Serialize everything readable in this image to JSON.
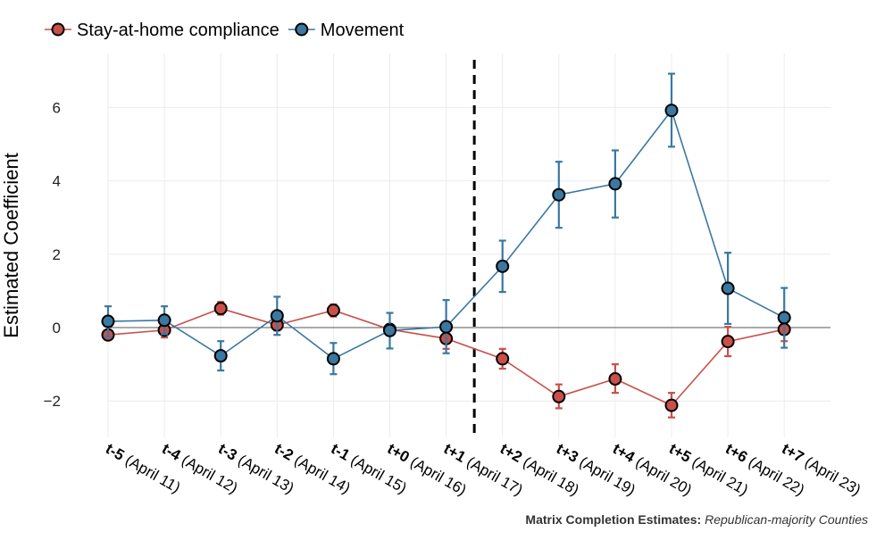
{
  "chart_data": {
    "type": "line",
    "title": "",
    "xlabel": "",
    "ylabel": "Estimated Coefficient",
    "ylim": [
      -3,
      7.2
    ],
    "yticks": [
      -2,
      0,
      2,
      4,
      6
    ],
    "ytick_labels": [
      "−2",
      "0",
      "2",
      "4",
      "6"
    ],
    "grid": true,
    "zero_line": 0,
    "legend": "top-left",
    "categories": [
      {
        "bold": "t-5",
        "rest": " (April 11)"
      },
      {
        "bold": "t-4",
        "rest": " (April 12)"
      },
      {
        "bold": "t-3",
        "rest": " (April 13)"
      },
      {
        "bold": "t-2",
        "rest": " (April 14)"
      },
      {
        "bold": "t-1",
        "rest": " (April 15)"
      },
      {
        "bold": "t+0",
        "rest": " (April 16)"
      },
      {
        "bold": "t+1",
        "rest": " (April 17)"
      },
      {
        "bold": "t+2",
        "rest": " (April 18)"
      },
      {
        "bold": "t+3",
        "rest": " (April 19)"
      },
      {
        "bold": "t+4",
        "rest": " (April 20)"
      },
      {
        "bold": "t+5",
        "rest": " (April 21)"
      },
      {
        "bold": "t+6",
        "rest": " (April 22)"
      },
      {
        "bold": "t+7",
        "rest": " (April 23)"
      }
    ],
    "treatment_line_x": 6.5,
    "series": [
      {
        "name": "Stay-at-home compliance",
        "color": "#c9504a",
        "values": [
          -0.2,
          -0.07,
          0.52,
          0.07,
          0.47,
          -0.05,
          -0.3,
          -0.85,
          -1.88,
          -1.4,
          -2.12,
          -0.38,
          -0.05
        ],
        "lower": [
          -0.32,
          -0.27,
          0.35,
          -0.08,
          0.3,
          -0.18,
          -0.58,
          -1.12,
          -2.2,
          -1.78,
          -2.45,
          -0.78,
          -0.37
        ],
        "upper": [
          -0.08,
          0.13,
          0.7,
          0.22,
          0.63,
          0.08,
          -0.02,
          -0.58,
          -1.55,
          -1.0,
          -1.78,
          0.02,
          0.25
        ]
      },
      {
        "name": "Movement",
        "color": "#3a78a1",
        "values": [
          0.17,
          0.2,
          -0.77,
          0.32,
          -0.85,
          -0.08,
          0.02,
          1.67,
          3.62,
          3.92,
          5.92,
          1.07,
          0.27
        ],
        "lower": [
          -0.25,
          -0.18,
          -1.17,
          -0.2,
          -1.27,
          -0.57,
          -0.7,
          0.97,
          2.72,
          3.0,
          4.93,
          0.1,
          -0.55
        ],
        "upper": [
          0.58,
          0.58,
          -0.37,
          0.84,
          -0.42,
          0.4,
          0.75,
          2.37,
          4.52,
          4.83,
          6.92,
          2.04,
          1.08
        ]
      }
    ]
  },
  "caption": {
    "bold": "Matrix Completion Estimates:",
    "italic": "Republican-majority Counties"
  }
}
